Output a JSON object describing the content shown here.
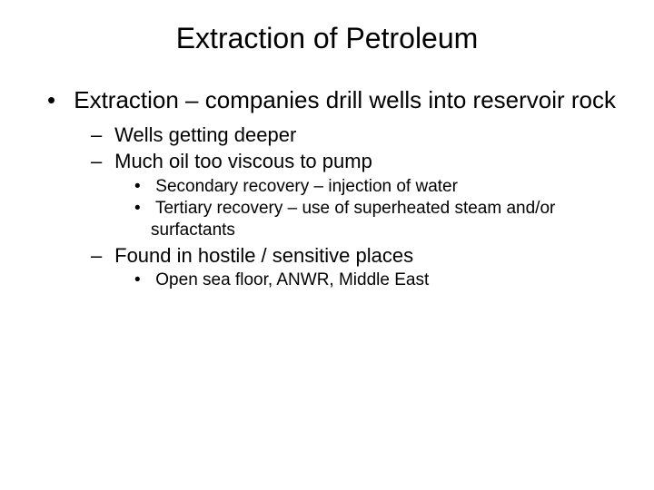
{
  "title": "Extraction of Petroleum",
  "bullets": {
    "l1_1": "Extraction – companies drill wells into reservoir rock",
    "l2_1": "Wells getting deeper",
    "l2_2": "Much oil too viscous to pump",
    "l3_1": "Secondary recovery – injection of water",
    "l3_2": "Tertiary recovery – use of superheated steam and/or surfactants",
    "l2_3": "Found in hostile / sensitive places",
    "l3_3": "Open sea floor, ANWR, Middle East"
  },
  "styling": {
    "background_color": "#ffffff",
    "text_color": "#000000",
    "font_family": "Arial",
    "title_fontsize": 32,
    "lvl1_fontsize": 26,
    "lvl2_fontsize": 22,
    "lvl3_fontsize": 19,
    "slide_width": 720,
    "slide_height": 540
  }
}
